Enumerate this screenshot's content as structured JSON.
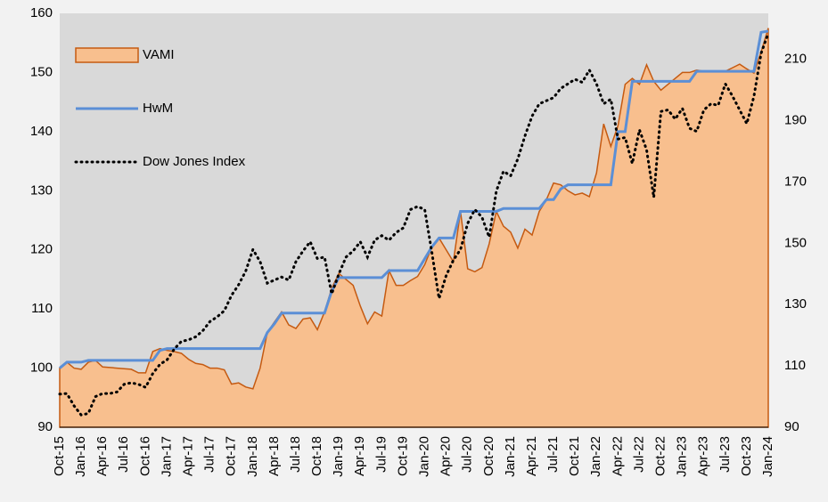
{
  "chart_data": {
    "type": "combo",
    "categories": [
      "Oct-15",
      null,
      null,
      "Jan-16",
      null,
      null,
      "Apr-16",
      null,
      null,
      "Jul-16",
      null,
      null,
      "Oct-16",
      null,
      null,
      "Jan-17",
      null,
      null,
      "Apr-17",
      null,
      null,
      "Jul-17",
      null,
      null,
      "Oct-17",
      null,
      null,
      "Jan-18",
      null,
      null,
      "Apr-18",
      null,
      null,
      "Jul-18",
      null,
      null,
      "Oct-18",
      null,
      null,
      "Jan-19",
      null,
      null,
      "Apr-19",
      null,
      null,
      "Jul-19",
      null,
      null,
      "Oct-19",
      null,
      null,
      "Jan-20",
      null,
      null,
      "Apr-20",
      null,
      null,
      "Jul-20",
      null,
      null,
      "Oct-20",
      null,
      null,
      "Jan-21",
      null,
      null,
      "Apr-21",
      null,
      null,
      "Jul-21",
      null,
      null,
      "Oct-21",
      null,
      null,
      "Jan-22",
      null,
      null,
      "Apr-22",
      null,
      null,
      "Jul-22",
      null,
      null,
      "Oct-22",
      null,
      null,
      "Jan-23",
      null,
      null,
      "Apr-23",
      null,
      null,
      "Jul-23",
      null,
      null,
      "Oct-23",
      null,
      null,
      "Jan-24"
    ],
    "series": [
      {
        "name": "VAMI",
        "type": "area",
        "color": "#c55a11",
        "fill": "#f8bf8e",
        "values": [
          100,
          101,
          100,
          99.8,
          101,
          101.3,
          100.2,
          100.1,
          100,
          99.9,
          99.8,
          99.2,
          99.2,
          102.8,
          103.3,
          103,
          102.8,
          102.5,
          101.5,
          100.8,
          100.6,
          100,
          100,
          99.7,
          97.3,
          97.5,
          96.8,
          96.5,
          100,
          106,
          107.8,
          109.5,
          107.3,
          106.7,
          108.3,
          108.5,
          106.5,
          109.5,
          113.5,
          116,
          115,
          114,
          110.5,
          107.5,
          109.5,
          108.8,
          116.5,
          114,
          114,
          114.8,
          115.5,
          117.5,
          120.5,
          122,
          120,
          118,
          126.5,
          116.8,
          116.3,
          117,
          121,
          126.5,
          124,
          123,
          120.3,
          123.5,
          122.5,
          126.5,
          128.5,
          131.3,
          131,
          130,
          129.3,
          129.6,
          129,
          133,
          141.3,
          137.5,
          141,
          148,
          149,
          148,
          151.3,
          148.5,
          147,
          148,
          149,
          150,
          150,
          150.4,
          150.2,
          150.2,
          150.2,
          150.2,
          150.8,
          151.4,
          150.6,
          149.9,
          153.5,
          157.5
        ]
      },
      {
        "name": "HwM",
        "type": "line",
        "color": "#5b8fd6",
        "values": [
          100,
          101,
          101,
          101,
          101.3,
          101.3,
          101.3,
          101.3,
          101.3,
          101.3,
          101.3,
          101.3,
          101.3,
          101.3,
          103,
          103.3,
          103.3,
          103.3,
          103.3,
          103.3,
          103.3,
          103.3,
          103.3,
          103.3,
          103.3,
          103.3,
          103.3,
          103.3,
          103.3,
          106,
          107.5,
          109.3,
          109.3,
          109.3,
          109.3,
          109.3,
          109.3,
          109.3,
          113,
          115.3,
          115.3,
          115.3,
          115.3,
          115.3,
          115.3,
          115.3,
          116.5,
          116.5,
          116.5,
          116.5,
          116.5,
          118.5,
          120.5,
          122,
          122,
          122,
          126.5,
          126.5,
          126.5,
          126.5,
          126.5,
          126.5,
          127,
          127,
          127,
          127,
          127,
          127,
          128.5,
          128.5,
          130.3,
          131,
          131,
          131,
          131,
          131,
          131,
          131,
          140,
          140,
          148.5,
          148.5,
          148.5,
          148.5,
          148.5,
          148.5,
          148.5,
          148.5,
          148.5,
          150.2,
          150.2,
          150.2,
          150.2,
          150.2,
          150.2,
          150.2,
          150.2,
          150.2,
          156.8,
          157
        ]
      },
      {
        "name": "Dow Jones Index",
        "type": "line",
        "dash": "dotted",
        "axis": "y2",
        "color": "#000000",
        "values": [
          100.8,
          101,
          97,
          94,
          94.5,
          100,
          101,
          101,
          101.5,
          104,
          104.5,
          104,
          103,
          107.5,
          110.5,
          112,
          115.5,
          118,
          118.5,
          119.5,
          121.5,
          124.5,
          126,
          128,
          133,
          136.5,
          141,
          148,
          144,
          137,
          138,
          139,
          138,
          144,
          147.5,
          150.5,
          145,
          145.5,
          133.5,
          140,
          145.5,
          147.5,
          150.5,
          145.5,
          151,
          152.5,
          151,
          153.5,
          155,
          161,
          162,
          161,
          147,
          132,
          139.5,
          144.5,
          148,
          156.5,
          161,
          158.5,
          152,
          167,
          173.5,
          172,
          177.5,
          185,
          191.5,
          195.5,
          196.5,
          197.5,
          200.5,
          202,
          203.5,
          202.5,
          206.5,
          202,
          195.5,
          197,
          184,
          184.5,
          176,
          187,
          180.5,
          165,
          193,
          193.5,
          190.5,
          194,
          187.5,
          186.5,
          193.5,
          195.5,
          195,
          202,
          198,
          193.5,
          189,
          198,
          212,
          218.5
        ]
      }
    ],
    "ylim": [
      90,
      160
    ],
    "yticks": [
      90,
      100,
      110,
      120,
      130,
      140,
      150,
      160
    ],
    "y2lim": [
      90,
      225
    ],
    "y2ticks": [
      90,
      110,
      130,
      150,
      170,
      190,
      210
    ],
    "legend": "upper left",
    "background": "#d9d9d9"
  }
}
